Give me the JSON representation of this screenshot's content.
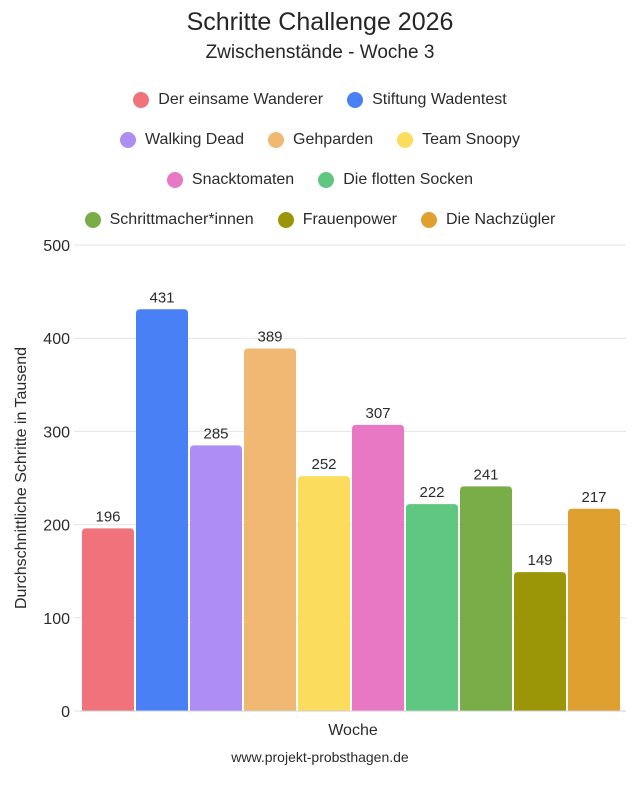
{
  "title": "Schritte Challenge 2026",
  "subtitle": "Zwischenstände - Woche 3",
  "legend_rows": [
    [
      "Der einsame Wanderer",
      "Stiftung Wadentest"
    ],
    [
      "Walking Dead",
      "Gehparden",
      "Team Snoopy"
    ],
    [
      "Snacktomaten",
      "Die flotten Socken"
    ],
    [
      "Schrittmacher*innen",
      "Frauenpower",
      "Die Nachzügler"
    ]
  ],
  "chart_data": {
    "type": "bar",
    "title": "Schritte Challenge 2026",
    "subtitle": "Zwischenstände - Woche 3",
    "xlabel": "Woche",
    "ylabel": "Durchschnittliche Schritte in Tausend",
    "ylim": [
      0,
      500
    ],
    "yticks": [
      0,
      100,
      200,
      300,
      400,
      500
    ],
    "grid": true,
    "legend_position": "top",
    "data_labels": true,
    "series": [
      {
        "name": "Der einsame Wanderer",
        "values": [
          196
        ],
        "color": "#f0737c"
      },
      {
        "name": "Stiftung Wadentest",
        "values": [
          431
        ],
        "color": "#4a80f5"
      },
      {
        "name": "Walking Dead",
        "values": [
          285
        ],
        "color": "#ae8ef5"
      },
      {
        "name": "Gehparden",
        "values": [
          389
        ],
        "color": "#f0b872"
      },
      {
        "name": "Team Snoopy",
        "values": [
          252
        ],
        "color": "#fcdc5c"
      },
      {
        "name": "Snacktomaten",
        "values": [
          307
        ],
        "color": "#e878c4"
      },
      {
        "name": "Die flotten Socken",
        "values": [
          222
        ],
        "color": "#5fc77f"
      },
      {
        "name": "Schrittmacher*innen",
        "values": [
          241
        ],
        "color": "#79ad48"
      },
      {
        "name": "Frauenpower",
        "values": [
          149
        ],
        "color": "#9b9508"
      },
      {
        "name": "Die Nachzügler",
        "values": [
          217
        ],
        "color": "#e0a030"
      }
    ]
  },
  "footer": "www.projekt-probsthagen.de"
}
